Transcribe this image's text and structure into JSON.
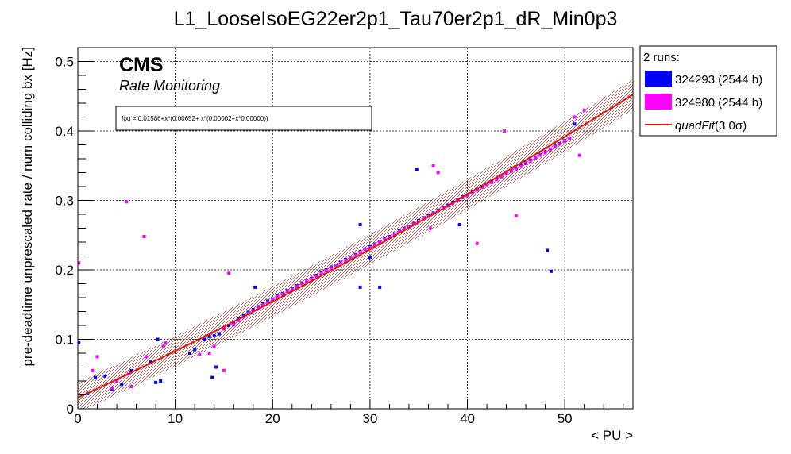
{
  "chart_data": {
    "type": "scatter",
    "title": "L1_LooseIsoEG22er2p1_Tau70er2p1_dR_Min0p3",
    "xlabel": "< PU >",
    "ylabel": "pre-deadtime unprescaled rate / num colliding bx [Hz]",
    "xlim": [
      0,
      57
    ],
    "ylim": [
      0,
      0.52
    ],
    "x_ticks": [
      "0",
      "10",
      "20",
      "30",
      "40",
      "50"
    ],
    "y_ticks": [
      "0",
      "0.1",
      "0.2",
      "0.3",
      "0.4",
      "0.5"
    ],
    "grid": true,
    "annotations": {
      "experiment": "CMS",
      "subtitle": "Rate Monitoring",
      "fit_box": "f(x) = 0.01586+x*(0.00652+ x*(0.00002+x*0.00000))"
    },
    "legend": {
      "placement": "right",
      "header": "2 runs:",
      "entries": [
        {
          "label": "324293 (2544 b)",
          "color": "#0000ff"
        },
        {
          "label": "324980 (2544 b)",
          "color": "#ff00ff"
        },
        {
          "label_prefix": "quadFit",
          "label_suffix": "(3.0σ)",
          "color": "#e8120c"
        }
      ]
    },
    "fit": {
      "name": "quadFit",
      "coefficients": [
        0.01586,
        0.00652,
        2e-05,
        0.0
      ],
      "band_sigma": 3.0,
      "band_halfwidth": 0.022,
      "x_range": [
        0,
        57
      ]
    },
    "series": [
      {
        "name": "324293 (2544 b)",
        "color": "#0000ff",
        "points": [
          [
            0.1,
            0.095
          ],
          [
            1.0,
            0.022
          ],
          [
            1.8,
            0.045
          ],
          [
            2.8,
            0.047
          ],
          [
            3.5,
            0.028
          ],
          [
            4.5,
            0.035
          ],
          [
            5.5,
            0.055
          ],
          [
            7.5,
            0.068
          ],
          [
            8.0,
            0.038
          ],
          [
            8.2,
            0.1
          ],
          [
            8.5,
            0.04
          ],
          [
            11.5,
            0.08
          ],
          [
            12.0,
            0.085
          ],
          [
            13.0,
            0.1
          ],
          [
            13.5,
            0.104
          ],
          [
            13.8,
            0.045
          ],
          [
            14.0,
            0.105
          ],
          [
            14.2,
            0.06
          ],
          [
            14.5,
            0.108
          ],
          [
            15.0,
            0.115
          ],
          [
            15.5,
            0.12
          ],
          [
            16.0,
            0.125
          ],
          [
            16.5,
            0.13
          ],
          [
            17.0,
            0.134
          ],
          [
            17.5,
            0.139
          ],
          [
            18.0,
            0.143
          ],
          [
            18.2,
            0.175
          ],
          [
            18.5,
            0.147
          ],
          [
            19.0,
            0.151
          ],
          [
            19.5,
            0.155
          ],
          [
            20.0,
            0.158
          ],
          [
            20.5,
            0.162
          ],
          [
            21.0,
            0.166
          ],
          [
            21.5,
            0.17
          ],
          [
            22.0,
            0.173
          ],
          [
            22.5,
            0.177
          ],
          [
            23.0,
            0.181
          ],
          [
            23.5,
            0.185
          ],
          [
            24.0,
            0.188
          ],
          [
            24.5,
            0.192
          ],
          [
            25.0,
            0.196
          ],
          [
            25.5,
            0.2
          ],
          [
            26.0,
            0.204
          ],
          [
            26.5,
            0.207
          ],
          [
            27.0,
            0.211
          ],
          [
            27.5,
            0.215
          ],
          [
            28.0,
            0.218
          ],
          [
            28.5,
            0.222
          ],
          [
            29.0,
            0.226
          ],
          [
            29.0,
            0.175
          ],
          [
            29.0,
            0.265
          ],
          [
            29.5,
            0.23
          ],
          [
            30.0,
            0.233
          ],
          [
            30.0,
            0.218
          ],
          [
            30.5,
            0.237
          ],
          [
            31.0,
            0.241
          ],
          [
            31.0,
            0.175
          ],
          [
            31.5,
            0.245
          ],
          [
            32.0,
            0.248
          ],
          [
            32.5,
            0.252
          ],
          [
            33.0,
            0.256
          ],
          [
            33.5,
            0.26
          ],
          [
            34.0,
            0.263
          ],
          [
            34.5,
            0.267
          ],
          [
            34.8,
            0.344
          ],
          [
            35.0,
            0.271
          ],
          [
            35.5,
            0.275
          ],
          [
            36.0,
            0.278
          ],
          [
            36.5,
            0.282
          ],
          [
            37.0,
            0.286
          ],
          [
            37.5,
            0.29
          ],
          [
            38.0,
            0.293
          ],
          [
            38.5,
            0.297
          ],
          [
            39.0,
            0.301
          ],
          [
            39.2,
            0.265
          ],
          [
            39.5,
            0.305
          ],
          [
            40.0,
            0.308
          ],
          [
            40.5,
            0.312
          ],
          [
            41.0,
            0.316
          ],
          [
            41.5,
            0.32
          ],
          [
            42.0,
            0.324
          ],
          [
            42.5,
            0.327
          ],
          [
            43.0,
            0.331
          ],
          [
            43.5,
            0.335
          ],
          [
            44.0,
            0.339
          ],
          [
            44.5,
            0.343
          ],
          [
            45.0,
            0.346
          ],
          [
            45.5,
            0.35
          ],
          [
            46.0,
            0.354
          ],
          [
            46.5,
            0.358
          ],
          [
            47.0,
            0.362
          ],
          [
            47.5,
            0.366
          ],
          [
            48.0,
            0.37
          ],
          [
            48.2,
            0.228
          ],
          [
            48.5,
            0.374
          ],
          [
            48.6,
            0.198
          ],
          [
            49.0,
            0.378
          ],
          [
            49.5,
            0.382
          ],
          [
            50.0,
            0.386
          ],
          [
            50.5,
            0.39
          ],
          [
            51.0,
            0.41
          ]
        ]
      },
      {
        "name": "324980 (2544 b)",
        "color": "#ff00ff",
        "points": [
          [
            0.1,
            0.21
          ],
          [
            1.5,
            0.055
          ],
          [
            2.0,
            0.075
          ],
          [
            3.5,
            0.03
          ],
          [
            4.0,
            0.04
          ],
          [
            5.0,
            0.298
          ],
          [
            5.2,
            0.05
          ],
          [
            5.5,
            0.032
          ],
          [
            6.8,
            0.248
          ],
          [
            7.0,
            0.075
          ],
          [
            8.8,
            0.09
          ],
          [
            9.0,
            0.095
          ],
          [
            12.5,
            0.078
          ],
          [
            13.5,
            0.08
          ],
          [
            14.0,
            0.09
          ],
          [
            15.0,
            0.055
          ],
          [
            15.0,
            0.115
          ],
          [
            15.5,
            0.195
          ],
          [
            16.0,
            0.121
          ],
          [
            16.5,
            0.127
          ],
          [
            17.0,
            0.132
          ],
          [
            17.5,
            0.137
          ],
          [
            18.0,
            0.142
          ],
          [
            18.5,
            0.146
          ],
          [
            19.0,
            0.15
          ],
          [
            19.5,
            0.153
          ],
          [
            20.0,
            0.157
          ],
          [
            20.5,
            0.161
          ],
          [
            21.0,
            0.165
          ],
          [
            21.5,
            0.169
          ],
          [
            22.0,
            0.172
          ],
          [
            22.5,
            0.176
          ],
          [
            23.0,
            0.18
          ],
          [
            23.5,
            0.184
          ],
          [
            24.0,
            0.187
          ],
          [
            24.5,
            0.191
          ],
          [
            25.0,
            0.195
          ],
          [
            25.5,
            0.199
          ],
          [
            26.0,
            0.203
          ],
          [
            26.5,
            0.206
          ],
          [
            27.0,
            0.21
          ],
          [
            27.5,
            0.214
          ],
          [
            28.0,
            0.217
          ],
          [
            28.5,
            0.221
          ],
          [
            29.0,
            0.225
          ],
          [
            29.5,
            0.229
          ],
          [
            30.0,
            0.232
          ],
          [
            30.5,
            0.236
          ],
          [
            31.0,
            0.24
          ],
          [
            31.5,
            0.244
          ],
          [
            32.0,
            0.247
          ],
          [
            32.5,
            0.251
          ],
          [
            33.0,
            0.255
          ],
          [
            33.5,
            0.259
          ],
          [
            34.0,
            0.262
          ],
          [
            34.5,
            0.266
          ],
          [
            35.0,
            0.27
          ],
          [
            35.5,
            0.274
          ],
          [
            36.0,
            0.277
          ],
          [
            36.2,
            0.26
          ],
          [
            36.5,
            0.281
          ],
          [
            36.5,
            0.35
          ],
          [
            37.0,
            0.285
          ],
          [
            37.0,
            0.34
          ],
          [
            37.5,
            0.289
          ],
          [
            38.0,
            0.292
          ],
          [
            38.5,
            0.296
          ],
          [
            39.0,
            0.3
          ],
          [
            39.5,
            0.304
          ],
          [
            40.0,
            0.307
          ],
          [
            40.5,
            0.311
          ],
          [
            41.0,
            0.315
          ],
          [
            41.0,
            0.238
          ],
          [
            41.5,
            0.319
          ],
          [
            42.0,
            0.323
          ],
          [
            42.5,
            0.326
          ],
          [
            43.0,
            0.33
          ],
          [
            43.5,
            0.334
          ],
          [
            43.8,
            0.4
          ],
          [
            44.0,
            0.338
          ],
          [
            44.5,
            0.342
          ],
          [
            45.0,
            0.345
          ],
          [
            45.0,
            0.278
          ],
          [
            45.5,
            0.349
          ],
          [
            46.0,
            0.353
          ],
          [
            46.5,
            0.357
          ],
          [
            47.0,
            0.361
          ],
          [
            47.5,
            0.365
          ],
          [
            48.0,
            0.369
          ],
          [
            48.5,
            0.373
          ],
          [
            49.0,
            0.377
          ],
          [
            49.5,
            0.381
          ],
          [
            50.0,
            0.385
          ],
          [
            50.5,
            0.389
          ],
          [
            51.0,
            0.42
          ],
          [
            51.5,
            0.365
          ],
          [
            52.0,
            0.43
          ]
        ]
      }
    ]
  }
}
